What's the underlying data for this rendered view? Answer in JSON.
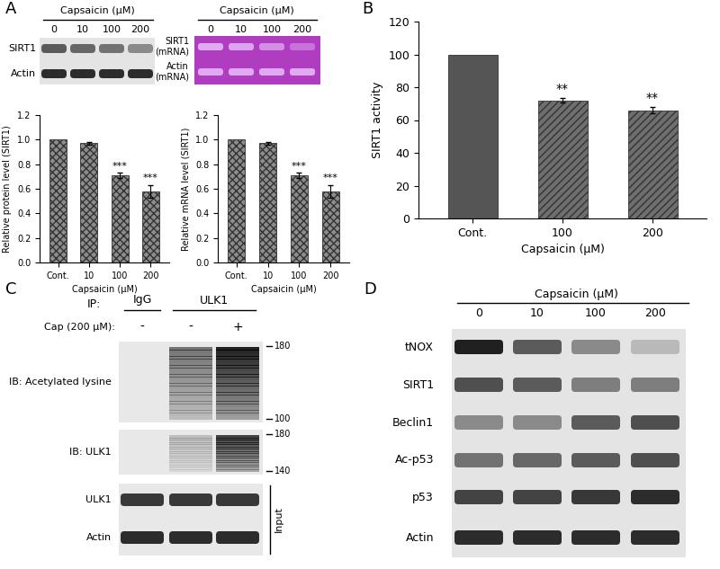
{
  "panels": [
    "A",
    "B",
    "C",
    "D"
  ],
  "chart_data": [
    {
      "type": "bar",
      "categories": [
        "Cont.",
        "10",
        "100",
        "200"
      ],
      "values": [
        1.0,
        0.97,
        0.71,
        0.58
      ],
      "errors": [
        0,
        0.01,
        0.02,
        0.05
      ],
      "color": "#8c8c8c",
      "xlabel": "Capsaicin (µM)",
      "ylabel": "Relative protein level (SIRT1)",
      "ylim": [
        0,
        1.2
      ],
      "yticks": [
        {
          "value": 0,
          "label": "0.0"
        },
        {
          "value": 0.2,
          "label": "0.2"
        },
        {
          "value": 0.4,
          "label": "0.4"
        },
        {
          "value": 0.6,
          "label": "0.6"
        },
        {
          "value": 0.8,
          "label": "0.8"
        },
        {
          "value": 1.0,
          "label": "1.0"
        },
        {
          "value": 1.2,
          "label": "1.2"
        }
      ],
      "annotations": [
        {
          "category": "100",
          "text": "***"
        },
        {
          "category": "200",
          "text": "***"
        }
      ]
    },
    {
      "type": "bar",
      "categories": [
        "Cont.",
        "10",
        "100",
        "200"
      ],
      "values": [
        1.0,
        0.97,
        0.71,
        0.58
      ],
      "errors": [
        0,
        0.01,
        0.02,
        0.05
      ],
      "color": "#8c8c8c",
      "xlabel": "Capsaicin (µM)",
      "ylabel": "Relative mRNA level (SIRT1)",
      "ylim": [
        0,
        1.2
      ],
      "yticks": [
        {
          "value": 0,
          "label": "0.0"
        },
        {
          "value": 0.2,
          "label": "0.2"
        },
        {
          "value": 0.4,
          "label": "0.4"
        },
        {
          "value": 0.6,
          "label": "0.6"
        },
        {
          "value": 0.8,
          "label": "0.8"
        },
        {
          "value": 1.0,
          "label": "1.0"
        },
        {
          "value": 1.2,
          "label": "1.2"
        }
      ],
      "annotations": [
        {
          "category": "100",
          "text": "***"
        },
        {
          "category": "200",
          "text": "***"
        }
      ]
    },
    {
      "type": "bar",
      "categories": [
        "Cont.",
        "100",
        "200"
      ],
      "values": [
        100,
        72,
        66
      ],
      "errors": [
        0,
        1.5,
        2
      ],
      "colors": [
        "#555555",
        "#6e6e6e",
        "#6e6e6e"
      ],
      "xlabel": "Capsaicin (µM)",
      "ylabel": "SIRT1 activity",
      "ylim": [
        0,
        120
      ],
      "yticks": [
        0,
        20,
        40,
        60,
        80,
        100,
        120
      ],
      "annotations": [
        {
          "category": "100",
          "text": "**"
        },
        {
          "category": "200",
          "text": "**"
        }
      ]
    }
  ],
  "blots": [
    {
      "type": "western",
      "header": "Capsaicin (µM)",
      "lanes": [
        "0",
        "10",
        "100",
        "200"
      ],
      "rows": [
        {
          "label": "SIRT1",
          "intensity": [
            0.7,
            0.65,
            0.6,
            0.5
          ]
        },
        {
          "label": "Actin",
          "intensity": [
            0.9,
            0.9,
            0.9,
            0.9
          ]
        }
      ]
    },
    {
      "type": "gel",
      "header": "Capsaicin (µM)",
      "lanes": [
        "0",
        "10",
        "100",
        "200"
      ],
      "rows": [
        {
          "label": "SIRT1\n(mRNA)",
          "intensity": [
            0.8,
            0.75,
            0.6,
            0.4
          ]
        },
        {
          "label": "Actin\n(mRNA)",
          "intensity": [
            0.8,
            0.8,
            0.8,
            0.8
          ]
        }
      ]
    },
    {
      "type": "western",
      "header": "Capsaicin (µM)",
      "lanes": [
        "0",
        "10",
        "100",
        "200"
      ],
      "rows": [
        {
          "label": "tNOX",
          "intensity": [
            0.95,
            0.7,
            0.5,
            0.3
          ]
        },
        {
          "label": "SIRT1",
          "intensity": [
            0.75,
            0.7,
            0.55,
            0.55
          ]
        },
        {
          "label": "Beclin1",
          "intensity": [
            0.5,
            0.5,
            0.7,
            0.75
          ]
        },
        {
          "label": "Ac-p53",
          "intensity": [
            0.6,
            0.65,
            0.7,
            0.75
          ]
        },
        {
          "label": "p53",
          "intensity": [
            0.8,
            0.8,
            0.85,
            0.9
          ]
        },
        {
          "label": "Actin",
          "intensity": [
            0.9,
            0.9,
            0.9,
            0.9
          ]
        }
      ]
    }
  ],
  "coip": {
    "ip_label": "IP:",
    "lane_ip": [
      "IgG",
      "ULK1",
      "ULK1"
    ],
    "treatment_label": "Cap (200 µM):",
    "treatment": [
      "-",
      "-",
      "+"
    ],
    "ib_rows": [
      {
        "label": "IB: Acetylated lysine",
        "intensity": [
          0,
          0.55,
          0.95
        ],
        "markers": [
          180,
          100
        ]
      },
      {
        "label": "IB: ULK1",
        "intensity": [
          0,
          0.2,
          0.8
        ],
        "markers": [
          180,
          140
        ]
      }
    ],
    "input_label": "Input",
    "input_rows": [
      {
        "label": "ULK1",
        "intensity": [
          0.85,
          0.85,
          0.85
        ]
      },
      {
        "label": "Actin",
        "intensity": [
          0.9,
          0.9,
          0.9
        ]
      }
    ]
  }
}
